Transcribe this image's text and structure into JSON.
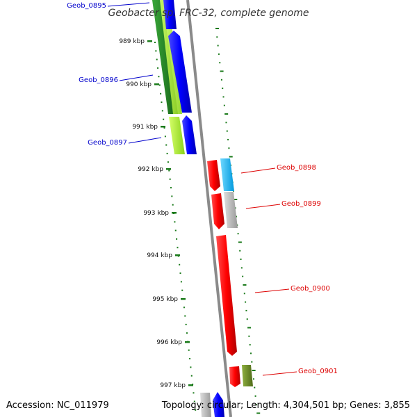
{
  "title": "Geobacter sp. FRC-32, complete genome",
  "footer": {
    "accession": "Accession: NC_011979",
    "topology": "Topology: circular; Length: 4,304,501 bp; Genes: 3,855"
  },
  "kbp_labels": [
    "989 kbp",
    "990 kbp",
    "991 kbp",
    "992 kbp",
    "993 kbp",
    "994 kbp",
    "995 kbp",
    "996 kbp",
    "997 kbp"
  ],
  "genes": [
    {
      "label": "Geob_0895",
      "strand": "minus",
      "color": "#0000cc"
    },
    {
      "label": "Geob_0896",
      "strand": "minus",
      "color": "#0000cc"
    },
    {
      "label": "Geob_0897",
      "strand": "minus",
      "color": "#0000cc"
    },
    {
      "label": "Geob_0898",
      "strand": "plus",
      "color": "#dd0000"
    },
    {
      "label": "Geob_0899",
      "strand": "plus",
      "color": "#dd0000"
    },
    {
      "label": "Geob_0900",
      "strand": "plus",
      "color": "#dd0000"
    },
    {
      "label": "Geob_0901",
      "strand": "plus",
      "color": "#dd0000"
    }
  ],
  "colors": {
    "backbone": "#808080",
    "plus_strand": "#ff0000",
    "minus_strand": "#0000ff",
    "cog_dark_green": "#228b22",
    "cog_light_green": "#adff2f",
    "cog_cyan": "#00bfff",
    "cog_gray": "#bbbbbb",
    "cog_olive": "#6b8e23",
    "tick": "#006400"
  }
}
